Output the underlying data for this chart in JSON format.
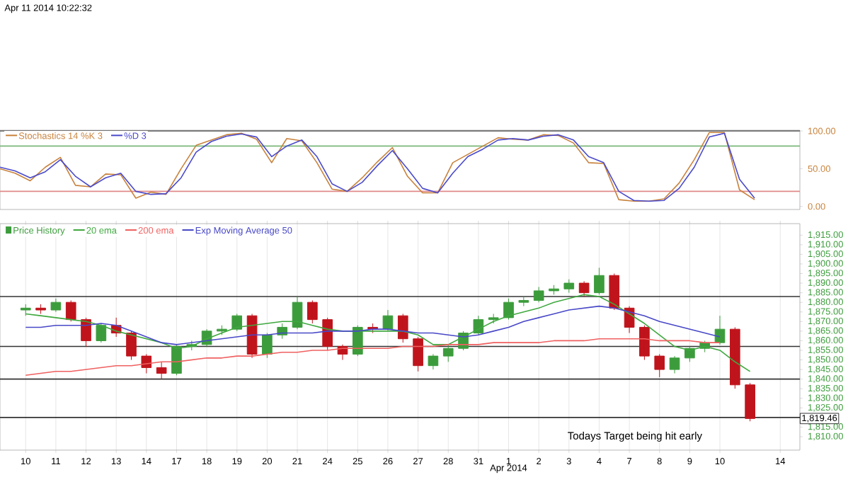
{
  "chart_data": [
    {
      "type": "line",
      "subtitle": "Apr 11 2014 10:22:32",
      "legend": "top left",
      "tick_labels": "y",
      "ylim": [
        -4,
        101
      ],
      "categories": [
        null,
        null,
        null,
        null,
        null,
        null,
        null,
        null,
        null,
        null,
        null,
        null,
        null,
        null,
        null,
        null,
        null,
        null,
        null,
        null,
        null,
        null,
        null,
        null,
        null,
        null,
        null,
        null,
        null,
        null,
        null,
        null,
        null,
        null,
        null,
        null,
        null,
        null,
        null,
        null,
        null,
        null,
        null,
        null,
        null,
        null,
        null,
        null,
        null,
        null,
        null,
        null,
        null,
        null
      ],
      "yticks": [
        {
          "value": 100,
          "label": "100.00"
        },
        {
          "value": 50,
          "label": "50.00"
        },
        {
          "value": 0,
          "label": "0.00"
        }
      ],
      "ref_lines": [
        {
          "axis": "y",
          "value": 100,
          "color": "#555555"
        },
        {
          "axis": "y",
          "value": 80,
          "color": "#7ab87a"
        },
        {
          "axis": "y",
          "value": 20,
          "color": "#e08a8a"
        }
      ],
      "series": [
        {
          "name": "Stochastics 14 %K 3",
          "color": "#c8823c",
          "values": [
            50,
            44,
            34,
            52,
            65,
            28,
            26,
            43,
            42,
            11,
            19,
            16,
            50,
            81,
            88,
            95,
            97,
            89,
            58,
            90,
            87,
            58,
            23,
            20,
            38,
            59,
            78,
            40,
            18,
            18,
            58,
            69,
            80,
            91,
            89,
            88,
            95,
            94,
            84,
            58,
            57,
            9,
            7,
            7,
            10,
            31,
            62,
            98,
            98,
            22,
            9,
            null,
            null,
            null
          ]
        },
        {
          "name": "%D 3",
          "color": "#4a4acb",
          "values": [
            52,
            47,
            38,
            46,
            62,
            40,
            26,
            38,
            44,
            20,
            16,
            17,
            38,
            72,
            86,
            93,
            96,
            92,
            66,
            80,
            88,
            66,
            30,
            20,
            32,
            54,
            74,
            50,
            24,
            18,
            44,
            66,
            76,
            88,
            90,
            88,
            93,
            95,
            88,
            66,
            58,
            20,
            8,
            7,
            8,
            24,
            52,
            92,
            97,
            36,
            11,
            null,
            null,
            null
          ]
        }
      ]
    },
    {
      "type": "candlestick",
      "xlabel": "Apr 2014",
      "legend": "top left",
      "grid": "x",
      "ylim": [
        1803,
        1921
      ],
      "categories": [
        "10",
        null,
        "11",
        null,
        "12",
        null,
        "13",
        null,
        "14",
        null,
        "17",
        null,
        "18",
        null,
        "19",
        null,
        "20",
        null,
        "21",
        null,
        "24",
        null,
        "25",
        null,
        "26",
        null,
        "27",
        null,
        "28",
        null,
        "31",
        null,
        "1",
        null,
        "2",
        null,
        "3",
        null,
        "4",
        null,
        "7",
        null,
        "8",
        null,
        "9",
        null,
        "10",
        null,
        null,
        null,
        "14",
        null
      ],
      "yticks": [
        {
          "value": 1915,
          "label": "1,915.00"
        },
        {
          "value": 1910,
          "label": "1,910.00"
        },
        {
          "value": 1905,
          "label": "1,905.00"
        },
        {
          "value": 1900,
          "label": "1,900.00"
        },
        {
          "value": 1895,
          "label": "1,895.00"
        },
        {
          "value": 1890,
          "label": "1,890.00"
        },
        {
          "value": 1885,
          "label": "1,885.00"
        },
        {
          "value": 1880,
          "label": "1,880.00"
        },
        {
          "value": 1875,
          "label": "1,875.00"
        },
        {
          "value": 1870,
          "label": "1,870.00"
        },
        {
          "value": 1865,
          "label": "1,865.00"
        },
        {
          "value": 1860,
          "label": "1,860.00"
        },
        {
          "value": 1855,
          "label": "1,855.00"
        },
        {
          "value": 1850,
          "label": "1,850.00"
        },
        {
          "value": 1845,
          "label": "1,845.00"
        },
        {
          "value": 1840,
          "label": "1,840.00"
        },
        {
          "value": 1835,
          "label": "1,835.00"
        },
        {
          "value": 1830,
          "label": "1,830.00"
        },
        {
          "value": 1825,
          "label": "1,825.00"
        },
        {
          "value": 1820,
          "label": null
        },
        {
          "value": 1815,
          "label": "1,815.00"
        },
        {
          "value": 1810,
          "label": "1,810.00"
        }
      ],
      "ref_lines": [
        {
          "axis": "y",
          "value": 1883,
          "color": "#333333"
        },
        {
          "axis": "y",
          "value": 1857,
          "color": "#333333"
        },
        {
          "axis": "y",
          "value": 1840,
          "color": "#333333"
        },
        {
          "axis": "y",
          "value": 1820,
          "color": "#333333"
        }
      ],
      "annotations": [
        "Todays Target being hit early",
        "1,819.46"
      ],
      "series": [
        {
          "name": "Price History",
          "type": "candlestick",
          "color": "#3c9c3c",
          "colors": [
            "#3c9c3c",
            "#c0141c",
            "#3c9c3c",
            "#c0141c",
            "#c0141c",
            "#3c9c3c",
            "#c0141c",
            "#c0141c",
            "#c0141c",
            "#c0141c",
            "#3c9c3c",
            "#3c9c3c",
            "#3c9c3c",
            "#3c9c3c",
            "#3c9c3c",
            "#c0141c",
            "#3c9c3c",
            "#3c9c3c",
            "#3c9c3c",
            "#c0141c",
            "#c0141c",
            "#c0141c",
            "#3c9c3c",
            "#c0141c",
            "#3c9c3c",
            "#c0141c",
            "#c0141c",
            "#3c9c3c",
            "#3c9c3c",
            "#3c9c3c",
            "#3c9c3c",
            "#3c9c3c",
            "#3c9c3c",
            "#3c9c3c",
            "#3c9c3c",
            "#3c9c3c",
            "#3c9c3c",
            "#c0141c",
            "#3c9c3c",
            "#c0141c",
            "#c0141c",
            "#c0141c",
            "#c0141c",
            "#3c9c3c",
            "#3c9c3c",
            "#3c9c3c",
            "#3c9c3c",
            "#c0141c",
            "#c0141c",
            null,
            null,
            null
          ],
          "ohlc": [
            [
              1876,
              1879,
              1873,
              1877
            ],
            [
              1877,
              1879,
              1874,
              1876
            ],
            [
              1876,
              1882,
              1875,
              1880
            ],
            [
              1880,
              1881,
              1870,
              1871
            ],
            [
              1871,
              1872,
              1857,
              1860
            ],
            [
              1860,
              1869,
              1859,
              1868
            ],
            [
              1868,
              1872,
              1862,
              1864
            ],
            [
              1864,
              1865,
              1850,
              1852
            ],
            [
              1852,
              1853,
              1843,
              1846
            ],
            [
              1846,
              1849,
              1840,
              1843
            ],
            [
              1843,
              1858,
              1842,
              1857
            ],
            [
              1857,
              1860,
              1855,
              1858
            ],
            [
              1858,
              1866,
              1857,
              1865
            ],
            [
              1865,
              1868,
              1863,
              1866
            ],
            [
              1866,
              1874,
              1865,
              1873
            ],
            [
              1873,
              1874,
              1851,
              1853
            ],
            [
              1853,
              1864,
              1851,
              1863
            ],
            [
              1863,
              1869,
              1861,
              1867
            ],
            [
              1867,
              1883,
              1866,
              1880
            ],
            [
              1880,
              1881,
              1869,
              1871
            ],
            [
              1871,
              1872,
              1855,
              1857
            ],
            [
              1857,
              1858,
              1850,
              1853
            ],
            [
              1853,
              1868,
              1852,
              1867
            ],
            [
              1867,
              1869,
              1864,
              1866
            ],
            [
              1866,
              1876,
              1865,
              1873
            ],
            [
              1873,
              1874,
              1859,
              1861
            ],
            [
              1861,
              1862,
              1844,
              1847
            ],
            [
              1847,
              1853,
              1845,
              1852
            ],
            [
              1852,
              1858,
              1849,
              1856
            ],
            [
              1856,
              1865,
              1855,
              1864
            ],
            [
              1864,
              1873,
              1863,
              1871
            ],
            [
              1871,
              1874,
              1869,
              1872
            ],
            [
              1872,
              1882,
              1871,
              1880
            ],
            [
              1880,
              1883,
              1878,
              1881
            ],
            [
              1881,
              1888,
              1880,
              1886
            ],
            [
              1886,
              1889,
              1884,
              1887
            ],
            [
              1887,
              1892,
              1885,
              1890
            ],
            [
              1890,
              1891,
              1883,
              1885
            ],
            [
              1885,
              1898,
              1884,
              1894
            ],
            [
              1894,
              1895,
              1876,
              1877
            ],
            [
              1877,
              1878,
              1864,
              1867
            ],
            [
              1867,
              1868,
              1850,
              1852
            ],
            [
              1852,
              1853,
              1841,
              1845
            ],
            [
              1845,
              1852,
              1843,
              1851
            ],
            [
              1851,
              1857,
              1849,
              1856
            ],
            [
              1856,
              1860,
              1854,
              1859
            ],
            [
              1859,
              1873,
              1858,
              1866
            ],
            [
              1866,
              1867,
              1835,
              1837
            ],
            [
              1837,
              1838,
              1818,
              1819.46
            ],
            null,
            null,
            null
          ]
        },
        {
          "name": "20 ema",
          "type": "line",
          "color": "#3fa83f",
          "values": [
            1874,
            1873,
            1872,
            1871,
            1870,
            1868,
            1865,
            1863,
            1861,
            1859,
            1856,
            1857,
            1861,
            1864,
            1867,
            1868,
            1869,
            1870,
            1870,
            1868,
            1866,
            1865,
            1865,
            1865,
            1865,
            1865,
            1863,
            1858,
            1858,
            1862,
            1866,
            1870,
            1873,
            1875,
            1877,
            1880,
            1882,
            1884,
            1883,
            1879,
            1874,
            1869,
            1863,
            1857,
            1855,
            1857,
            1855,
            1849,
            1844,
            null,
            null,
            null
          ]
        },
        {
          "name": "200 ema",
          "type": "line",
          "color": "#f06060",
          "values": [
            1842,
            1843,
            1844,
            1844,
            1845,
            1846,
            1847,
            1847,
            1848,
            1849,
            1849,
            1850,
            1851,
            1851,
            1852,
            1852,
            1853,
            1854,
            1854,
            1855,
            1855,
            1856,
            1856,
            1856,
            1856,
            1857,
            1857,
            1857,
            1858,
            1858,
            1858,
            1859,
            1859,
            1859,
            1859,
            1860,
            1860,
            1860,
            1861,
            1861,
            1861,
            1861,
            1860,
            1860,
            1860,
            1859,
            1859,
            null,
            null,
            null,
            null,
            null
          ]
        },
        {
          "name": "Exp Moving Average 50",
          "type": "line",
          "color": "#4848c8",
          "values": [
            1867,
            1867,
            1868,
            1868,
            1868,
            1869,
            1868,
            1865,
            1862,
            1859,
            1858,
            1859,
            1860,
            1861,
            1862,
            1863,
            1863,
            1864,
            1864,
            1864,
            1865,
            1865,
            1865,
            1866,
            1866,
            1865,
            1864,
            1864,
            1863,
            1862,
            1863,
            1865,
            1867,
            1870,
            1872,
            1874,
            1876,
            1877,
            1878,
            1877,
            1875,
            1873,
            1870,
            1868,
            1866,
            1864,
            1862,
            null,
            null,
            null,
            null,
            null
          ]
        }
      ]
    }
  ]
}
